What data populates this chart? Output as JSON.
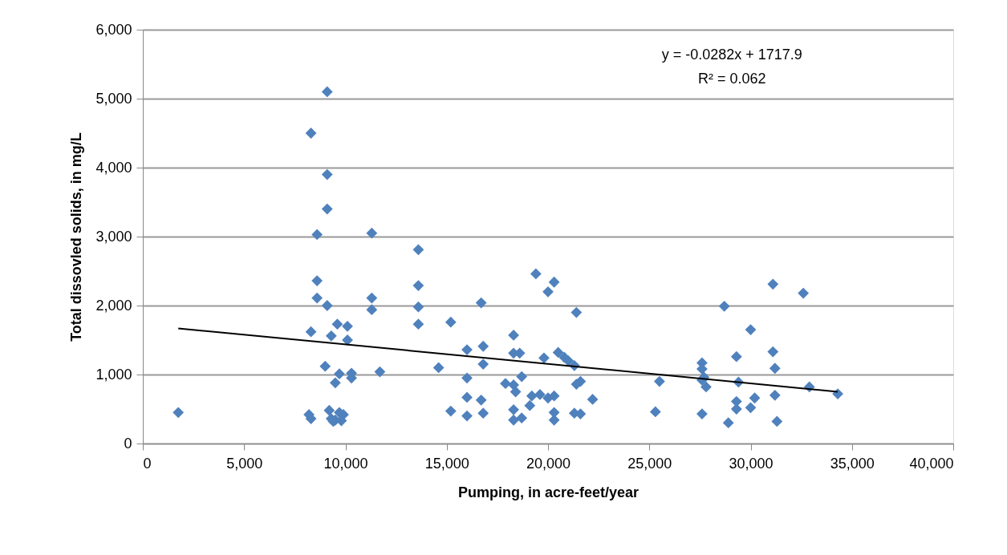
{
  "chart_data": {
    "type": "scatter",
    "xlabel": "Pumping, in acre-feet/year",
    "ylabel": "Total dissovled solids, in mg/L",
    "xlim": [
      0,
      40000
    ],
    "xticks": [
      0,
      {
        "value": 5000,
        "label": "5,000"
      },
      {
        "value": 10000,
        "label": "10,000"
      },
      {
        "value": 15000,
        "label": "15,000"
      },
      {
        "value": 20000,
        "label": "20,000"
      },
      {
        "value": 25000,
        "label": "25,000"
      },
      {
        "value": 30000,
        "label": "30,000"
      },
      {
        "value": 35000,
        "label": "35,000"
      },
      {
        "value": 40000,
        "label": "40,000"
      }
    ],
    "ylim": [
      0,
      6000
    ],
    "yticks": [
      0,
      {
        "value": 1000,
        "label": "1,000"
      },
      {
        "value": 2000,
        "label": "2,000"
      },
      {
        "value": 3000,
        "label": "3,000"
      },
      {
        "value": 4000,
        "label": "4,000"
      },
      {
        "value": 5000,
        "label": "5,000"
      },
      {
        "value": 6000,
        "label": "6,000"
      }
    ],
    "grid": "y",
    "annotations": [
      "y = -0.0282x + 1717.9",
      "R² = 0.062"
    ],
    "series": [
      {
        "marker": "diamond",
        "color": "#4f81bd",
        "x": [
          1750,
          8300,
          9100,
          9100,
          9100,
          8600,
          8600,
          8600,
          9100,
          8300,
          9300,
          9600,
          10100,
          10100,
          9000,
          9700,
          10300,
          10300,
          9500,
          8200,
          8300,
          9200,
          9300,
          9500,
          9700,
          9900,
          9800,
          9400,
          11300,
          11300,
          11300,
          11700,
          13600,
          13600,
          13600,
          13600,
          14600,
          15200,
          15200,
          16000,
          16000,
          16000,
          16000,
          16700,
          16800,
          16800,
          16700,
          16800,
          18300,
          18300,
          18600,
          18300,
          18400,
          18700,
          17900,
          18300,
          18300,
          18700,
          19100,
          19200,
          19600,
          19400,
          20000,
          20300,
          19800,
          20000,
          20300,
          20300,
          20300,
          20500,
          20800,
          21000,
          21300,
          21400,
          21400,
          21600,
          21300,
          21600,
          22200,
          25300,
          25500,
          27600,
          27600,
          27700,
          27600,
          27800,
          27600,
          28700,
          28900,
          29300,
          29300,
          29300,
          29400,
          30000,
          30000,
          30200,
          31100,
          31100,
          31200,
          31200,
          31300,
          32600,
          32900,
          34300
        ],
        "values": [
          450,
          4500,
          5100,
          3900,
          3400,
          3030,
          2360,
          2110,
          2000,
          1620,
          1560,
          1730,
          1700,
          1500,
          1120,
          1010,
          1020,
          950,
          880,
          420,
          360,
          480,
          360,
          340,
          450,
          420,
          330,
          320,
          3050,
          2110,
          1940,
          1040,
          2810,
          2290,
          1980,
          1730,
          1100,
          1760,
          470,
          1360,
          950,
          670,
          400,
          2040,
          1410,
          1150,
          630,
          440,
          1570,
          1310,
          1310,
          850,
          750,
          970,
          870,
          490,
          340,
          370,
          550,
          690,
          710,
          2460,
          2200,
          2340,
          1240,
          660,
          690,
          450,
          340,
          1320,
          1250,
          1200,
          1130,
          1900,
          860,
          900,
          440,
          430,
          640,
          460,
          900,
          1170,
          1080,
          960,
          920,
          820,
          430,
          1990,
          300,
          1260,
          610,
          500,
          890,
          1650,
          520,
          660,
          2310,
          1330,
          1090,
          700,
          320,
          2180,
          820,
          720
        ]
      },
      {
        "type": "line",
        "color": "#000000",
        "x": [
          1750,
          34300
        ],
        "values": [
          1670,
          750
        ]
      }
    ]
  }
}
